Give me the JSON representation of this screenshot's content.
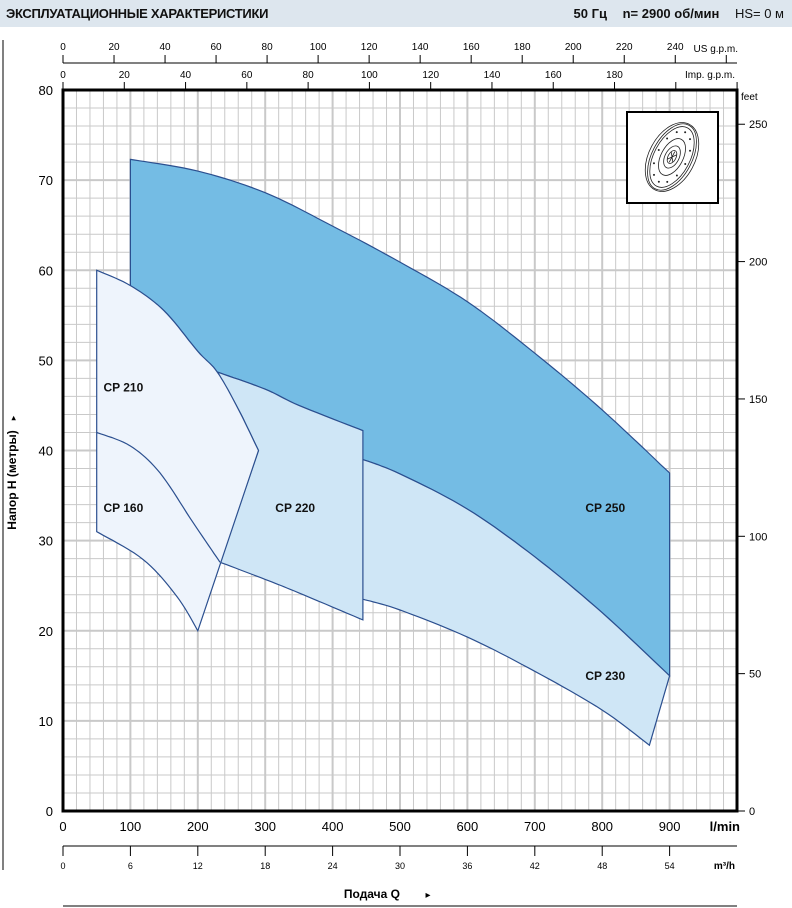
{
  "header": {
    "title": "ЭКСПЛУАТАЦИОННЫЕ ХАРАКТЕРИСТИКИ",
    "frequency": "50 Гц",
    "speed": "n= 2900  об/мин",
    "hs": "HS= 0 м"
  },
  "chart_data": {
    "type": "area",
    "title": "",
    "xlabel": "Подача Q",
    "ylabel": "Напор H (метры)",
    "x_unit": "l/min",
    "xlim": [
      0,
      1000
    ],
    "ylim": [
      0,
      80
    ],
    "grid": true,
    "x_ticks": [
      0,
      100,
      200,
      300,
      400,
      500,
      600,
      700,
      800,
      900
    ],
    "y_ticks": [
      0,
      10,
      20,
      30,
      40,
      50,
      60,
      70,
      80
    ],
    "secondary_axes": {
      "us_gpm": {
        "label": "US g.p.m.",
        "ticks": [
          0,
          20,
          40,
          60,
          80,
          100,
          120,
          140,
          160,
          180,
          200,
          220,
          240
        ]
      },
      "imp_gpm": {
        "label": "Imp. g.p.m.",
        "ticks": [
          0,
          20,
          40,
          60,
          80,
          100,
          120,
          140,
          160,
          180
        ]
      },
      "m3h": {
        "label": "m³/h",
        "ticks": [
          0,
          6,
          12,
          18,
          24,
          30,
          36,
          42,
          48,
          54
        ]
      },
      "feet": {
        "label": "feet",
        "ticks": [
          0,
          50,
          100,
          150,
          200,
          250
        ]
      }
    },
    "colors": {
      "cp250": "#74bce4",
      "cp230_220": "#cfe6f6",
      "cp210_160": "#eef4fc",
      "outline": "#2b4f8f",
      "grid": "#c9c9c9"
    },
    "series": [
      {
        "name": "CP 250",
        "top": [
          [
            100,
            72.3
          ],
          [
            200,
            71
          ],
          [
            300,
            68.6
          ],
          [
            400,
            64.9
          ],
          [
            500,
            60.9
          ],
          [
            600,
            56.5
          ],
          [
            700,
            50.8
          ],
          [
            800,
            44.5
          ],
          [
            900,
            37.5
          ]
        ]
      },
      {
        "name": "CP 230",
        "top": [
          [
            445,
            39
          ],
          [
            500,
            37.4
          ],
          [
            600,
            33.5
          ],
          [
            700,
            28.2
          ],
          [
            800,
            22
          ],
          [
            900,
            15
          ]
        ],
        "bottom": [
          [
            445,
            23.5
          ],
          [
            500,
            22.3
          ],
          [
            600,
            19.3
          ],
          [
            700,
            15.5
          ],
          [
            800,
            11.2
          ],
          [
            870,
            7.3
          ]
        ]
      },
      {
        "name": "CP 220",
        "top": [
          [
            229,
            48.7
          ],
          [
            300,
            46.8
          ],
          [
            350,
            45
          ],
          [
            445,
            42.2
          ]
        ],
        "bottom": [
          [
            233,
            27.6
          ],
          [
            300,
            25.7
          ],
          [
            350,
            24.2
          ],
          [
            445,
            21.2
          ]
        ]
      },
      {
        "name": "CP 210",
        "top": [
          [
            50,
            60
          ],
          [
            100,
            58.3
          ],
          [
            150,
            55.5
          ],
          [
            200,
            51
          ],
          [
            229,
            48.7
          ],
          [
            260,
            44.6
          ],
          [
            290,
            40
          ]
        ],
        "end": [
          200,
          20
        ]
      },
      {
        "name": "CP 160",
        "top": [
          [
            50,
            42
          ],
          [
            100,
            40.5
          ],
          [
            144,
            37.5
          ],
          [
            193,
            32
          ],
          [
            233,
            27.6
          ]
        ],
        "bottom": [
          [
            50,
            31
          ],
          [
            119,
            27.9
          ],
          [
            169,
            23.8
          ],
          [
            200,
            20
          ]
        ]
      }
    ]
  }
}
